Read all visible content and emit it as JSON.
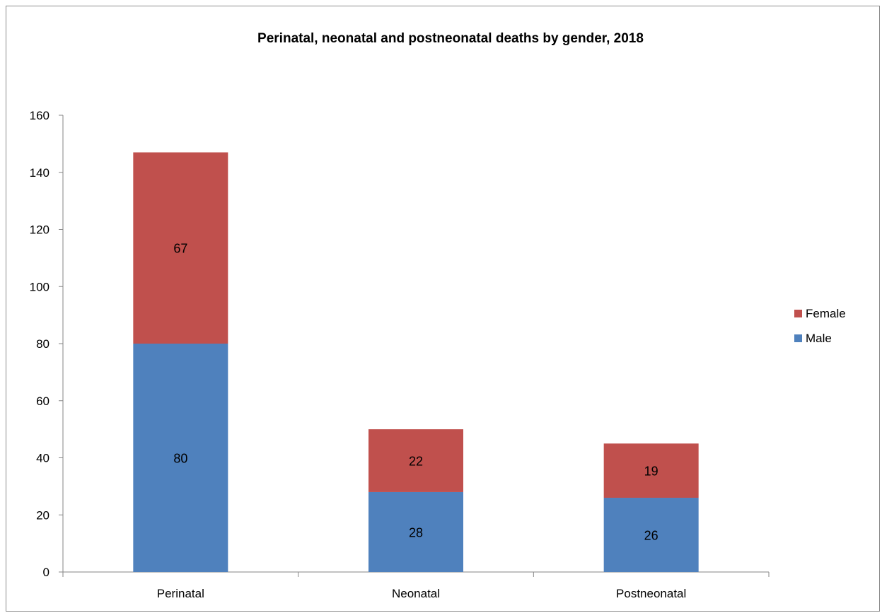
{
  "chart_data": {
    "type": "bar",
    "stacked": true,
    "title": "Perinatal, neonatal and postneonatal deaths by gender, 2018",
    "xlabel": "",
    "ylabel": "",
    "categories": [
      "Perinatal",
      "Neonatal",
      "Postneonatal"
    ],
    "series": [
      {
        "name": "Male",
        "values": [
          80,
          28,
          26
        ],
        "color": "#4f81bd"
      },
      {
        "name": "Female",
        "values": [
          67,
          22,
          19
        ],
        "color": "#c0504d"
      }
    ],
    "ylim": [
      0,
      160
    ],
    "yticks": [
      0,
      20,
      40,
      60,
      80,
      100,
      120,
      140,
      160
    ],
    "grid": false,
    "legend_position": "right",
    "data_labels": true
  }
}
